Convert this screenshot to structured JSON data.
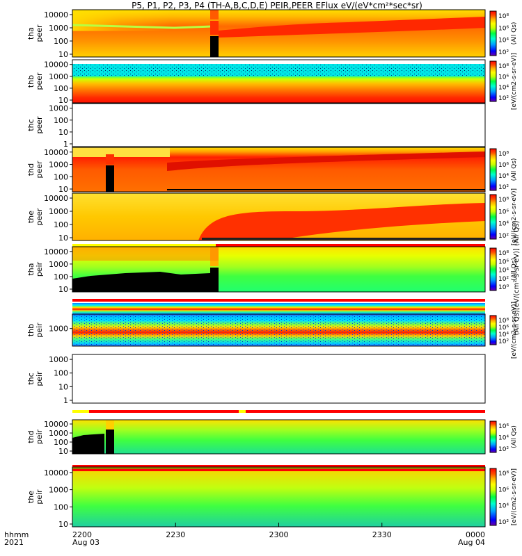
{
  "chart_data": {
    "type": "heatmap",
    "title": "P5, P1, P2, P3, P4 (TH-A,B,C,D,E) PEIR,PEER EFlux eV/(eV*cm²*sec*sr)",
    "x_ticks": [
      "2200",
      "2230",
      "2300",
      "2330",
      "0000"
    ],
    "x_dates": [
      "Aug 03",
      "Aug 04"
    ],
    "x_axis_label_top": "hhmm",
    "x_axis_label_bottom": "2021",
    "colorbar_label_esa": "(All Qs)[eV/(cm²-s-sr-eV)] (All Qs)",
    "colorbar_label_sst": "[eV/(cm²-s-sr-eV)] (All Qs)",
    "panels": [
      {
        "label1": "tha",
        "label2": "peer",
        "y_ticks": [
          "10",
          "100",
          "1000",
          "10000"
        ],
        "cb_ticks": [
          "10⁸",
          "10⁶",
          "10⁴",
          "10²"
        ],
        "cb_label": "(All Qs)"
      },
      {
        "label1": "thb",
        "label2": "peer",
        "y_ticks": [
          "10",
          "100",
          "1000",
          "10000"
        ],
        "cb_ticks": [
          "10⁸",
          "10⁶",
          "10⁴",
          "10²"
        ],
        "cb_label": "[eV/(cm2-s-sr-eV)]"
      },
      {
        "label1": "thc",
        "label2": "peer",
        "y_ticks": [
          "1",
          "10",
          "100",
          "1000"
        ],
        "cb_ticks": [],
        "cb_label": ""
      },
      {
        "label1": "thd",
        "label2": "peer",
        "y_ticks": [
          "10",
          "100",
          "1000",
          "10000"
        ],
        "cb_ticks": [
          "10⁸",
          "10⁶",
          "10⁴",
          "10²"
        ],
        "cb_label": "(All Qs)"
      },
      {
        "label1": "the",
        "label2": "peer",
        "y_ticks": [
          "10",
          "100",
          "1000",
          "10000"
        ],
        "cb_ticks": [
          "10⁸",
          "10⁶",
          "10⁴",
          "10²"
        ],
        "cb_label": "[eV/(cm2-s-sr-eV)]"
      },
      {
        "label1": "tha",
        "label2": "peir",
        "y_ticks": [
          "10",
          "100",
          "1000",
          "10000"
        ],
        "cb_ticks": [
          "10⁸",
          "10⁶",
          "10⁴",
          "10²",
          "10⁰"
        ],
        "cb_label": "(All Qs)"
      },
      {
        "label1": "thb",
        "label2": "peir",
        "y_ticks": [
          "1000"
        ],
        "cb_ticks": [
          "10⁸",
          "10⁶",
          "10⁴",
          "10²"
        ],
        "cb_label": "[eV/(cm2-s-sr-eV)]"
      },
      {
        "label1": "thc",
        "label2": "peir",
        "y_ticks": [
          "1",
          "10",
          "100",
          "1000"
        ],
        "cb_ticks": [],
        "cb_label": ""
      },
      {
        "label1": "thd",
        "label2": "peir",
        "y_ticks": [
          "10",
          "100",
          "1000",
          "10000"
        ],
        "cb_ticks": [
          "10⁶",
          "10⁴",
          "10²"
        ],
        "cb_label": "(All Qs)"
      },
      {
        "label1": "the",
        "label2": "peir",
        "y_ticks": [
          "10",
          "100",
          "1000",
          "10000"
        ],
        "cb_ticks": [
          "10⁸",
          "10⁶",
          "10⁴",
          "10²"
        ],
        "cb_label": "[eV/(cm2-s-sr-eV)]"
      }
    ],
    "colormap": [
      "#6a00a8",
      "#0000ff",
      "#00a0ff",
      "#00ffd0",
      "#00ff40",
      "#c8ff00",
      "#ffff00",
      "#ffb000",
      "#ff5000",
      "#ff0000"
    ]
  }
}
